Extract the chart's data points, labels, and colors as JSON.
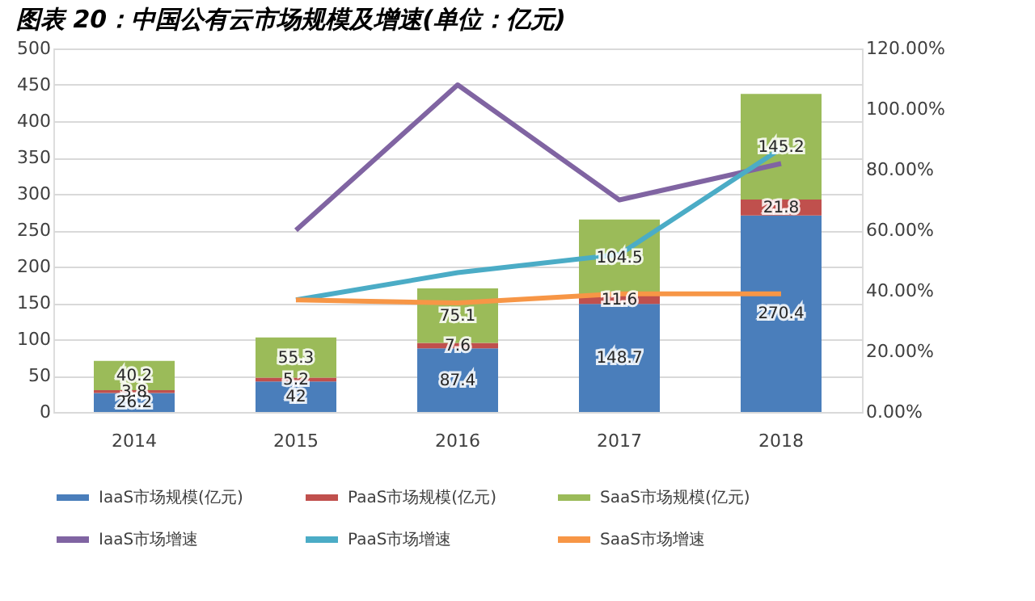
{
  "chart_data": {
    "type": "bar",
    "title": "图表 20：中国公有云市场规模及增速(单位：亿元)",
    "categories": [
      "2014",
      "2015",
      "2016",
      "2017",
      "2018"
    ],
    "stacked": true,
    "ylim": [
      0,
      500
    ],
    "yticks": [
      0,
      50,
      100,
      150,
      200,
      250,
      300,
      350,
      400,
      450,
      500
    ],
    "y2lim": [
      0,
      120
    ],
    "y2ticks": [
      {
        "value": 0,
        "label": "0.00%"
      },
      {
        "value": 20,
        "label": "20.00%"
      },
      {
        "value": 40,
        "label": "40.00%"
      },
      {
        "value": 60,
        "label": "60.00%"
      },
      {
        "value": 80,
        "label": "80.00%"
      },
      {
        "value": 100,
        "label": "100.00%"
      },
      {
        "value": 120,
        "label": "120.00%"
      }
    ],
    "grid": "y",
    "legend": "bottom",
    "series": [
      {
        "name": "IaaS市场规模(亿元)",
        "color": "#4a7ebb",
        "values": [
          26.2,
          42,
          87.4,
          148.7,
          270.4
        ],
        "value_labels": [
          "26.2",
          "42",
          "87.4",
          "148.7",
          "270.4"
        ]
      },
      {
        "name": "PaaS市场规模(亿元)",
        "color": "#c0504d",
        "values": [
          3.8,
          5.2,
          7.6,
          11.6,
          21.8
        ],
        "value_labels": [
          "3.8",
          "5.2",
          "7.6",
          "11.6",
          "21.8"
        ]
      },
      {
        "name": "SaaS市场规模(亿元)",
        "color": "#9bbb59",
        "values": [
          40.2,
          55.3,
          75.1,
          104.5,
          145.2
        ],
        "value_labels": [
          "40.2",
          "55.3",
          "75.1",
          "104.5",
          "145.2"
        ]
      },
      {
        "name": "IaaS市场增速",
        "type": "line",
        "axis": "y2",
        "color": "#8064a2",
        "values": [
          null,
          60,
          108,
          70,
          82
        ]
      },
      {
        "name": "PaaS市场增速",
        "type": "line",
        "axis": "y2",
        "color": "#4bacc6",
        "values": [
          null,
          37,
          46,
          52,
          87
        ]
      },
      {
        "name": "SaaS市场增速",
        "type": "line",
        "axis": "y2",
        "color": "#f79646",
        "values": [
          null,
          37,
          36,
          39,
          39
        ]
      }
    ]
  }
}
